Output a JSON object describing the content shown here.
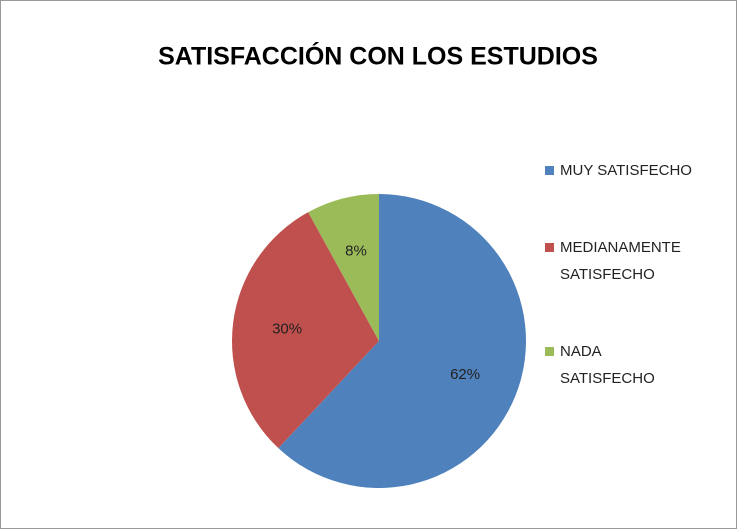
{
  "chart_data": {
    "type": "pie",
    "title": "SATISFACCIÓN CON LOS ESTUDIOS",
    "categories": [
      "MUY SATISFECHO",
      "MEDIANAMENTE SATISFECHO",
      "NADA SATISFECHO"
    ],
    "values": [
      62,
      30,
      8
    ],
    "value_labels": [
      "62%",
      "30%",
      "8%"
    ],
    "colors": [
      "#4f81bd",
      "#c0504d",
      "#9bbb59"
    ],
    "legend": "right"
  }
}
